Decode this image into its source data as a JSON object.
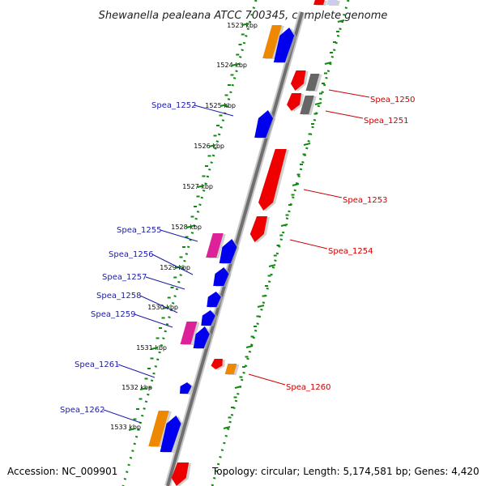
{
  "title": "Shewanella pealeana ATCC 700345, complete genome",
  "footer": {
    "accession": "Accession: NC_009901",
    "summary": "Topology: circular; Length: 5,174,581 bp; Genes: 4,420"
  },
  "colors": {
    "forward": "#0000ee",
    "reverse": "#ee0000",
    "magenta": "#dd2299",
    "orange": "#ee8800",
    "gray": "#666666",
    "forward_label": "#1a1aaa",
    "reverse_label": "#cc0000",
    "tick": "#118811"
  },
  "ticks": [
    "1523 kbp",
    "1524 kbp",
    "1525 kbp",
    "1526 kbp",
    "1527 kbp",
    "1528 kbp",
    "1529 kbp",
    "1530 kbp",
    "1531 kbp",
    "1532 kbp",
    "1533 kbp"
  ],
  "genes": {
    "forward": [
      "Spea_1252",
      "Spea_1255",
      "Spea_1256",
      "Spea_1257",
      "Spea_1258",
      "Spea_1259",
      "Spea_1261",
      "Spea_1262"
    ],
    "reverse": [
      "Spea_1250",
      "Spea_1251",
      "Spea_1253",
      "Spea_1254",
      "Spea_1260"
    ]
  }
}
